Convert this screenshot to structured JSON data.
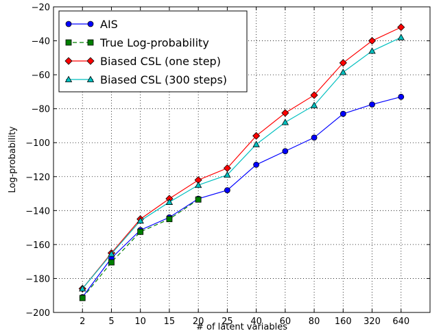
{
  "chart_data": {
    "type": "line",
    "title": "",
    "xlabel": "# of latent variables",
    "ylabel": "Log-probability",
    "categories": [
      "2",
      "5",
      "10",
      "15",
      "20",
      "25",
      "40",
      "60",
      "80",
      "160",
      "320",
      "640"
    ],
    "x_tick_labels": [
      "2",
      "5",
      "10",
      "15",
      "20",
      "25",
      "40",
      "60",
      "80",
      "160",
      "320",
      "640"
    ],
    "ylim": [
      -200,
      -20
    ],
    "y_ticks": [
      -200,
      -180,
      -160,
      -140,
      -120,
      -100,
      -80,
      -60,
      -40,
      -20
    ],
    "y_tick_labels": [
      "−200",
      "−180",
      "−160",
      "−140",
      "−120",
      "−100",
      "−80",
      "−60",
      "−40",
      "−20"
    ],
    "grid": true,
    "legend_position": "top-left",
    "series": [
      {
        "name": "AIS",
        "color": "#0000ff",
        "marker": "circle",
        "linestyle": "solid",
        "values": [
          -191,
          -168,
          -151.5,
          -144,
          -133,
          -128,
          -113,
          -105,
          -97,
          -83,
          -77.5,
          -73
        ]
      },
      {
        "name": "True Log-probability",
        "color": "#007f00",
        "marker": "square",
        "linestyle": "dashed",
        "values": [
          -191.5,
          -170.5,
          -152.5,
          -145,
          -133.5,
          null,
          null,
          null,
          null,
          null,
          null,
          null
        ]
      },
      {
        "name": "Biased CSL (one step)",
        "color": "#ff0000",
        "marker": "diamond",
        "linestyle": "solid",
        "values": [
          -186,
          -165,
          -145,
          -133,
          -122,
          -115,
          -96,
          -82.5,
          -72,
          -53,
          -40,
          -32
        ]
      },
      {
        "name": "Biased CSL (300 steps)",
        "color": "#00bfbf",
        "marker": "triangle",
        "linestyle": "solid",
        "values": [
          -186,
          -165.5,
          -146,
          -135,
          -125,
          -119,
          -101,
          -88,
          -78,
          -58.5,
          -46,
          -38
        ]
      }
    ]
  }
}
